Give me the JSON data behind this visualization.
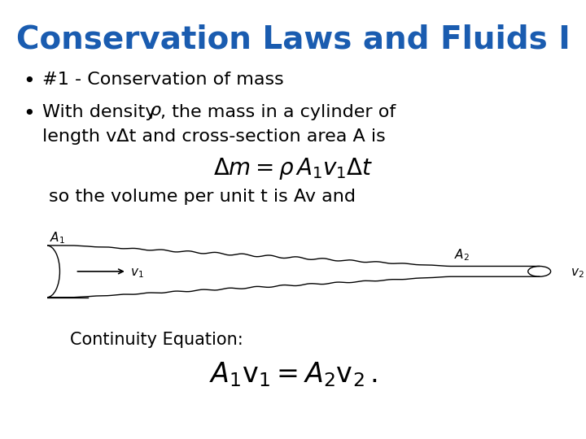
{
  "title": "Conservation Laws and Fluids I",
  "title_color": "#1a5cb0",
  "title_fontsize": 28,
  "bg_color": "#ffffff",
  "bullet1": "#1 - Conservation of mass",
  "bullet2_line2": "length vΔt and cross-section area A is",
  "equation1": "$\\Delta m = \\rho\\, A_1 v_1 \\Delta t$",
  "text_below_eq": "so the volume per unit t is Av and",
  "continuity_label": "Continuity Equation:",
  "equation2": "$A_1 \\mathrm{v}_1 = A_2 \\mathrm{v}_2\\,.$",
  "text_color": "#000000",
  "body_fontsize": 16,
  "eq_fontsize": 20,
  "eq2_fontsize": 24
}
